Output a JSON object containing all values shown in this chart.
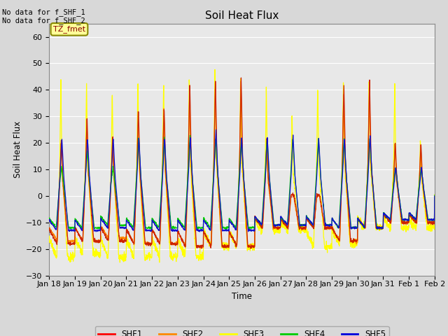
{
  "title": "Soil Heat Flux",
  "ylabel": "Soil Heat Flux",
  "xlabel": "Time",
  "ylim": [
    -30,
    65
  ],
  "yticks": [
    -30,
    -20,
    -10,
    0,
    10,
    20,
    30,
    40,
    50,
    60
  ],
  "annotation_text": "No data for f_SHF_1\nNo data for f_SHF_2",
  "tz_label": "TZ_fmet",
  "legend_entries": [
    "SHF1",
    "SHF2",
    "SHF3",
    "SHF4",
    "SHF5"
  ],
  "legend_colors": [
    "#ff0000",
    "#ff8800",
    "#ffff00",
    "#00cc00",
    "#0000dd"
  ],
  "line_colors": [
    "#cc2200",
    "#ff8800",
    "#ffff00",
    "#00cc00",
    "#1111cc"
  ],
  "background_color": "#d8d8d8",
  "plot_bg_color": "#e8e8e8",
  "x_tick_labels": [
    "Jan 18",
    "Jan 19",
    "Jan 20",
    "Jan 21",
    "Jan 22",
    "Jan 23",
    "Jan 24",
    "Jan 25",
    "Jan 26",
    "Jan 27",
    "Jan 28",
    "Jan 29",
    "Jan 30",
    "Jan 31",
    "Feb 1",
    "Feb 2"
  ],
  "grid_color": "#ffffff",
  "num_days": 15,
  "day_amplitudes_shf1": [
    22,
    30,
    23,
    33,
    34,
    43,
    44,
    45,
    22,
    0.5,
    0.5,
    42,
    44,
    21,
    20
  ],
  "day_amplitudes_shf2": [
    20,
    29,
    22,
    32,
    33,
    41,
    44,
    44,
    21,
    0.5,
    0.5,
    40,
    43,
    20,
    20
  ],
  "day_amplitudes_shf3": [
    44,
    44,
    39,
    44,
    44,
    45,
    51,
    45,
    41,
    30,
    41,
    43,
    44,
    43,
    21
  ],
  "day_amplitudes_shf4": [
    11,
    17,
    11,
    22,
    22,
    23,
    22,
    22,
    22,
    22,
    22,
    22,
    22,
    11,
    11
  ],
  "day_amplitudes_shf5": [
    22,
    22,
    22,
    22,
    22,
    22,
    25,
    22,
    22,
    23,
    22,
    22,
    23,
    11,
    11
  ],
  "night_depth": -19,
  "night_depth_shf3": -23,
  "night_depths_shf3": [
    -23,
    -22,
    -23,
    -23,
    -23,
    -23,
    -19,
    -19,
    -13,
    -13,
    -19,
    -18,
    -12,
    -12,
    -12
  ],
  "night_depths_shf1": [
    -18,
    -17,
    -17,
    -18,
    -18,
    -19,
    -19,
    -19,
    -12,
    -12,
    -12,
    -17,
    -12,
    -10,
    -10
  ],
  "night_depths_shf2": [
    -17,
    -17,
    -16,
    -18,
    -18,
    -19,
    -19,
    -19,
    -12,
    -12,
    -12,
    -17,
    -12,
    -10,
    -10
  ],
  "night_depths_shf4": [
    -12,
    -12,
    -11,
    -12,
    -12,
    -12,
    -12,
    -12,
    -11,
    -11,
    -11,
    -12,
    -12,
    -9,
    -9
  ],
  "night_depths_shf5": [
    -13,
    -13,
    -12,
    -13,
    -13,
    -13,
    -13,
    -13,
    -11,
    -11,
    -11,
    -12,
    -12,
    -9,
    -9
  ]
}
